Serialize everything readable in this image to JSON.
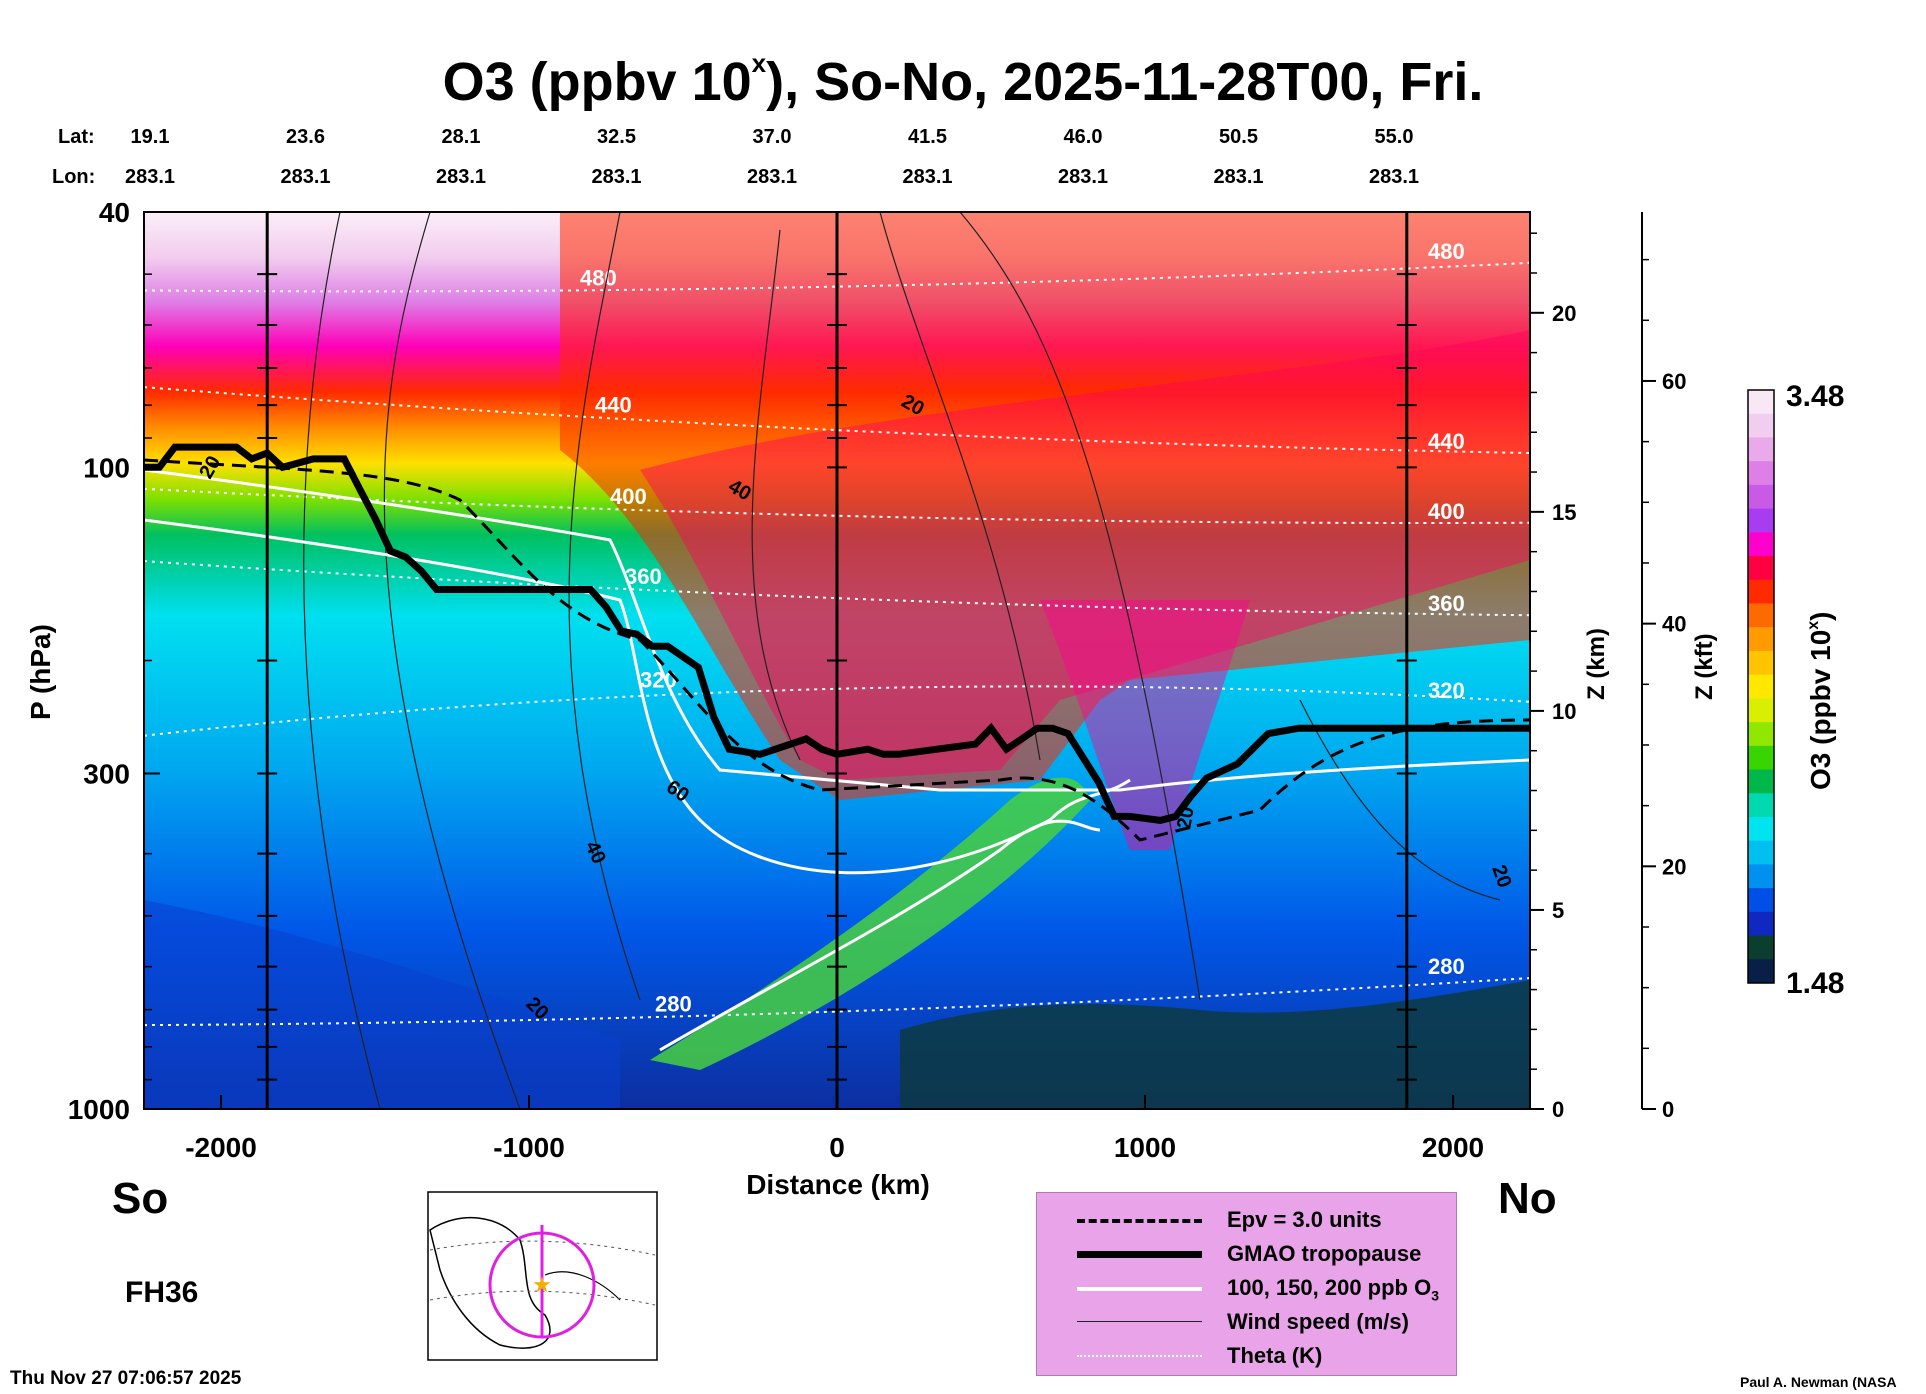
{
  "title_main": "O3 (ppbv 10",
  "title_sup": "x",
  "title_rest": "), So-No, 2025-11-28T00, Fri.",
  "header": {
    "lat_label": "Lat:",
    "lon_label": "Lon:",
    "lats": [
      "19.1",
      "23.6",
      "28.1",
      "32.5",
      "37.0",
      "41.5",
      "46.0",
      "50.5",
      "55.0"
    ],
    "lons": [
      "283.1",
      "283.1",
      "283.1",
      "283.1",
      "283.1",
      "283.1",
      "283.1",
      "283.1",
      "283.1"
    ]
  },
  "labels": {
    "south": "So",
    "north": "No",
    "forecast_hour": "FH36",
    "timestamp": "Thu Nov 27 07:06:57 2025",
    "credit": "Paul A. Newman (NASA"
  },
  "colorbar": {
    "max_label": "3.48",
    "min_label": "1.48",
    "title": "O3 (ppbv 10",
    "title_sup": "x",
    "title_end": ")",
    "colors": [
      "#f8e8f6",
      "#f1cdef",
      "#e9a9ea",
      "#dd7fe6",
      "#c85ae6",
      "#a83cf0",
      "#ff00cc",
      "#ff0040",
      "#ff2a00",
      "#ff6a00",
      "#ff9a00",
      "#ffc400",
      "#ffe800",
      "#d8f000",
      "#90e800",
      "#3ad400",
      "#00b84a",
      "#00d8b0",
      "#00e4f0",
      "#00c0f0",
      "#0090f0",
      "#0050e8",
      "#1028c0",
      "#0c3e30",
      "#082048"
    ]
  },
  "legend": [
    {
      "label": "Epv = 3.0 units",
      "style": "dashed"
    },
    {
      "label": "GMAO tropopause",
      "style": "thick"
    },
    {
      "label": "100, 150, 200 ppb O",
      "sub": "3",
      "style": "white"
    },
    {
      "label": "Wind speed (m/s)",
      "style": "thin"
    },
    {
      "label": "Theta (K)",
      "style": "dotted"
    }
  ],
  "chart_data": {
    "type": "heatmap",
    "xlabel": "Distance (km)",
    "ylabel": "P (hPa)",
    "right_ylabel_km": "Z (km)",
    "right_ylabel_kft": "Z (kft)",
    "xlim": [
      -2250,
      2250
    ],
    "ylim": [
      1000,
      40
    ],
    "x_ticks": [
      -2000,
      -1000,
      0,
      1000,
      2000
    ],
    "y_ticks": [
      40,
      100,
      300,
      1000
    ],
    "z_km_ticks": [
      0,
      5,
      10,
      15,
      20
    ],
    "z_kft_ticks": [
      0,
      20,
      40,
      60
    ],
    "colorbar_range": [
      1.48,
      3.48
    ],
    "colorbar_ticks": [
      1.48,
      3.48
    ],
    "vertical_lines_km": [
      -1850,
      0,
      1850
    ],
    "tropopause": {
      "x": [
        -2250,
        -2200,
        -2150,
        -2000,
        -1950,
        -1900,
        -1850,
        -1800,
        -1700,
        -1600,
        -1550,
        -1500,
        -1450,
        -1400,
        -1350,
        -1300,
        -1000,
        -800,
        -750,
        -700,
        -650,
        -600,
        -550,
        -450,
        -400,
        -350,
        -250,
        -200,
        -100,
        -50,
        0,
        100,
        150,
        200,
        450,
        500,
        550,
        600,
        650,
        700,
        750,
        850,
        900,
        950,
        1050,
        1100,
        1150,
        1200,
        1300,
        1400,
        1500,
        2250
      ],
      "p": [
        100,
        100,
        93,
        93,
        93,
        97,
        95,
        100,
        97,
        97,
        108,
        120,
        135,
        138,
        145,
        155,
        155,
        155,
        165,
        180,
        182,
        190,
        190,
        205,
        245,
        275,
        280,
        275,
        265,
        275,
        280,
        275,
        280,
        280,
        270,
        255,
        275,
        265,
        255,
        255,
        260,
        310,
        350,
        350,
        355,
        350,
        325,
        305,
        290,
        260,
        255,
        255
      ]
    },
    "isentropes": [
      {
        "label": "480",
        "p_left": 53,
        "p_right": 48
      },
      {
        "label": "440",
        "p_left": 75,
        "p_right": 95
      },
      {
        "label": "400",
        "p_left": 108,
        "p_right": 122
      },
      {
        "label": "360",
        "p_left": 140,
        "p_right": 170
      },
      {
        "label": "320",
        "p_left": 262,
        "p_right": 232
      },
      {
        "label": "280",
        "p_left": 740,
        "p_right": 625
      }
    ],
    "wind_speed_labels": [
      "20",
      "40",
      "60",
      "20",
      "40",
      "20",
      "20",
      "20"
    ],
    "ozone_contour_labels": [
      "100",
      "150",
      "200"
    ]
  }
}
